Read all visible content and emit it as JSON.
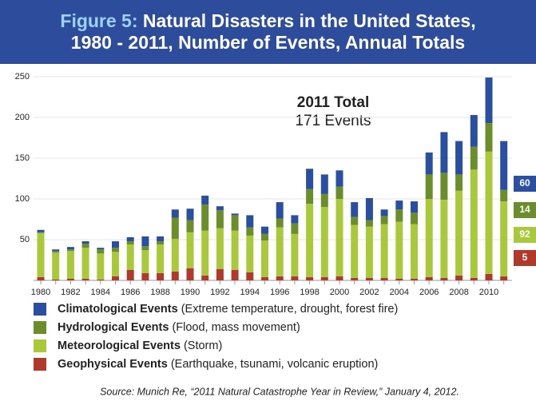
{
  "chart_data": {
    "type": "stacked_bar",
    "figure_label": "Figure 5:",
    "title": "Natural Disasters in the United States, 1980 - 2011, Number of Events, Annual Totals",
    "annotation_title": "2011 Total",
    "annotation_text": "171 Events",
    "source": "Source: Munich Re, “2011 Natural Catastrophe Year in Review,” January 4, 2012.",
    "categories": [
      "1980",
      null,
      "1982",
      null,
      "1984",
      null,
      "1986",
      null,
      "1988",
      null,
      "1990",
      null,
      "1992",
      null,
      "1994",
      null,
      "1996",
      null,
      "1998",
      null,
      "2000",
      null,
      "2002",
      null,
      "2004",
      null,
      "2006",
      null,
      "2008",
      null,
      "2010",
      null
    ],
    "ylim": [
      0,
      250
    ],
    "yticks": [
      50,
      100,
      150,
      200,
      250
    ],
    "grid": true,
    "series": [
      {
        "name": "Geophysical Events",
        "description": "(Earthquake, tsunami, volcanic eruption)",
        "color": "#b0392c",
        "values": [
          4,
          1,
          2,
          2,
          1,
          5,
          13,
          9,
          9,
          11,
          15,
          6,
          14,
          13,
          10,
          4,
          5,
          5,
          4,
          4,
          5,
          3,
          3,
          3,
          2,
          2,
          4,
          3,
          6,
          3,
          8,
          5
        ]
      },
      {
        "name": "Meteorological Events",
        "description": "(Storm)",
        "color": "#a9c93a",
        "values": [
          54,
          33,
          34,
          38,
          32,
          30,
          31,
          28,
          35,
          40,
          44,
          55,
          50,
          48,
          45,
          45,
          60,
          52,
          90,
          86,
          95,
          65,
          63,
          66,
          70,
          67,
          96,
          96,
          104,
          133,
          150,
          92
        ]
      },
      {
        "name": "Hydrological Events",
        "description": "(Flood, mass movement)",
        "color": "#6b8e2a",
        "values": [
          1,
          2,
          2,
          5,
          5,
          5,
          4,
          5,
          4,
          26,
          15,
          32,
          22,
          19,
          10,
          8,
          11,
          13,
          18,
          16,
          15,
          10,
          8,
          10,
          15,
          14,
          30,
          33,
          20,
          28,
          35,
          14
        ]
      },
      {
        "name": "Climatological Events",
        "description": "(Extreme temperature, drought, forest fire)",
        "color": "#2a4fa0",
        "values": [
          3,
          2,
          3,
          3,
          2,
          8,
          5,
          12,
          6,
          10,
          14,
          11,
          5,
          2,
          15,
          9,
          20,
          10,
          25,
          24,
          20,
          18,
          27,
          8,
          11,
          14,
          27,
          50,
          41,
          39,
          56,
          60
        ]
      }
    ]
  }
}
